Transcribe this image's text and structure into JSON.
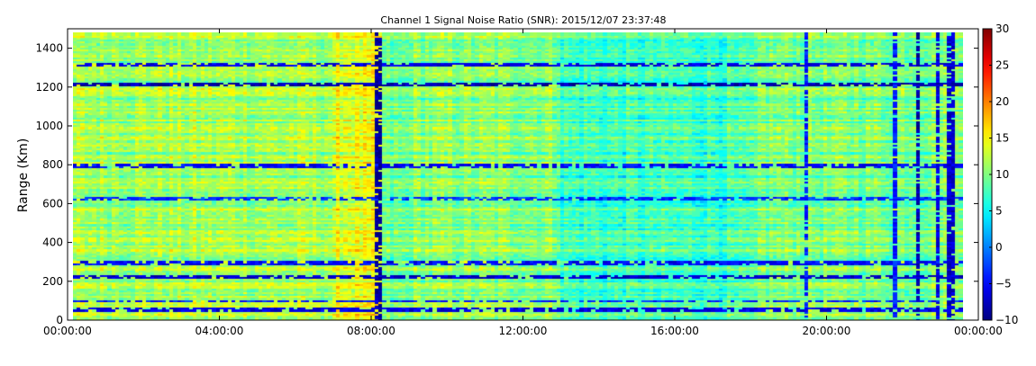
{
  "chart_data": {
    "type": "heatmap",
    "title": "Channel 1 Signal Noise Ratio (SNR): 2015/12/07 23:37:48",
    "xlabel": "",
    "ylabel": "Range (Km)",
    "xlim_hours": [
      0,
      24
    ],
    "ylim": [
      0,
      1500
    ],
    "x_ticks": [
      {
        "value": 0,
        "label": "00:00:00"
      },
      {
        "value": 4,
        "label": "04:00:00"
      },
      {
        "value": 8,
        "label": "08:00:00"
      },
      {
        "value": 12,
        "label": "12:00:00"
      },
      {
        "value": 16,
        "label": "16:00:00"
      },
      {
        "value": 20,
        "label": "20:00:00"
      },
      {
        "value": 24,
        "label": "00:00:00"
      }
    ],
    "y_ticks": [
      {
        "value": 0,
        "label": "0"
      },
      {
        "value": 200,
        "label": "200"
      },
      {
        "value": 400,
        "label": "400"
      },
      {
        "value": 600,
        "label": "600"
      },
      {
        "value": 800,
        "label": "800"
      },
      {
        "value": 1000,
        "label": "1000"
      },
      {
        "value": 1200,
        "label": "1200"
      },
      {
        "value": 1400,
        "label": "1400"
      }
    ],
    "colorbar": {
      "colormap": "jet",
      "min": -10,
      "max": 30,
      "ticks": [
        {
          "value": -10,
          "label": "−10"
        },
        {
          "value": -5,
          "label": "−5"
        },
        {
          "value": 0,
          "label": "0"
        },
        {
          "value": 5,
          "label": "5"
        },
        {
          "value": 10,
          "label": "10"
        },
        {
          "value": 15,
          "label": "15"
        },
        {
          "value": 20,
          "label": "20"
        },
        {
          "value": 25,
          "label": "25"
        },
        {
          "value": 30,
          "label": "30"
        }
      ]
    },
    "data_x_range_hours": [
      0.15,
      23.6
    ],
    "data_y_range": [
      0,
      1480
    ],
    "time_segments": [
      {
        "start": 0.15,
        "end": 7.1,
        "base_snr": 11.5
      },
      {
        "start": 7.1,
        "end": 8.3,
        "base_snr": 14.0
      },
      {
        "start": 8.3,
        "end": 9.0,
        "base_snr": 9.0
      },
      {
        "start": 9.0,
        "end": 13.0,
        "base_snr": 10.5
      },
      {
        "start": 13.0,
        "end": 18.2,
        "base_snr": 7.5
      },
      {
        "start": 18.2,
        "end": 23.6,
        "base_snr": 10.0
      }
    ],
    "low_range_bands": [
      {
        "range": 60,
        "snr": -6
      },
      {
        "range": 105,
        "snr": -4
      },
      {
        "range": 230,
        "snr": -7
      },
      {
        "range": 300,
        "snr": -5
      },
      {
        "range": 630,
        "snr": -3
      },
      {
        "range": 800,
        "snr": -5
      },
      {
        "range": 1220,
        "snr": -8
      },
      {
        "range": 1320,
        "snr": -6
      }
    ],
    "low_time_columns": [
      {
        "time": 8.2,
        "snr": -9
      },
      {
        "time": 22.4,
        "snr": -8
      },
      {
        "time": 22.9,
        "snr": -6
      },
      {
        "time": 23.3,
        "snr": -7
      },
      {
        "time": 19.5,
        "snr": -4
      },
      {
        "time": 21.8,
        "snr": -4
      }
    ]
  }
}
